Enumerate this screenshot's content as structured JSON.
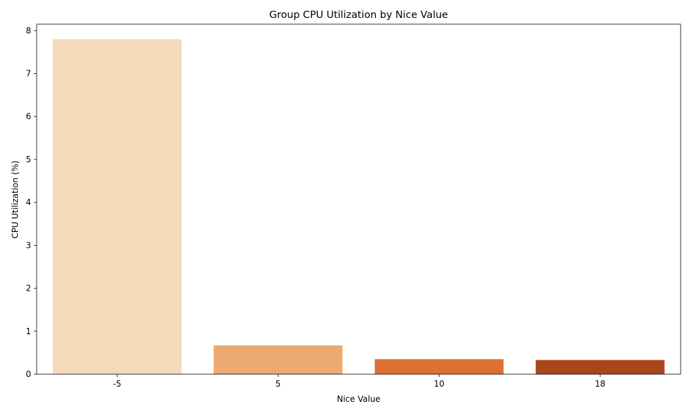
{
  "chart_data": {
    "type": "bar",
    "title": "Group CPU Utilization by Nice Value",
    "xlabel": "Nice Value",
    "ylabel": "CPU Utilization (%)",
    "categories": [
      "-5",
      "5",
      "10",
      "18"
    ],
    "values": [
      7.8,
      0.67,
      0.35,
      0.33
    ],
    "colors": [
      "#f4d9ba",
      "#eca970",
      "#dd7131",
      "#a9471a"
    ],
    "ylim": [
      0,
      8.15
    ],
    "yticks": [
      0,
      1,
      2,
      3,
      4,
      5,
      6,
      7,
      8
    ],
    "grid": false,
    "legend": "none"
  }
}
